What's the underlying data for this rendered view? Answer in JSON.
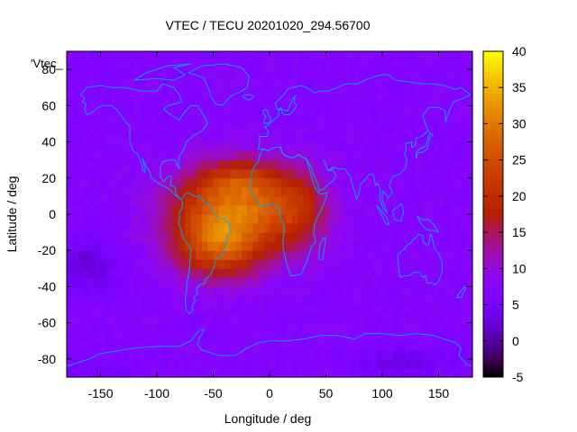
{
  "chart_data": {
    "type": "heatmap",
    "title": "VTEC / TECU 20201020_294.56700",
    "xlabel": "Longitude / deg",
    "ylabel": "Latitude / deg",
    "legend_label": "'Vtec_",
    "xlim": [
      -180,
      180
    ],
    "ylim": [
      -90,
      90
    ],
    "xticks": [
      -150,
      -100,
      -50,
      0,
      50,
      100,
      150
    ],
    "yticks": [
      -80,
      -60,
      -40,
      -20,
      0,
      20,
      40,
      60,
      80
    ],
    "colorbar": {
      "min": -5,
      "max": 40,
      "ticks": [
        -5,
        0,
        5,
        10,
        15,
        20,
        25,
        30,
        35,
        40
      ],
      "colormap": "gnuplot-pm3d-black-blue-red-yellow"
    },
    "background_level": 7,
    "anomalies": [
      {
        "name": "equatorial anomaly core",
        "lon": -30,
        "lat": 5,
        "lon_width": 55,
        "lat_width": 22,
        "amp": 20
      },
      {
        "name": "south american crest",
        "lon": -45,
        "lat": -18,
        "lon_width": 40,
        "lat_width": 18,
        "amp": 16
      },
      {
        "name": "eastern extension",
        "lon": 25,
        "lat": 2,
        "lon_width": 28,
        "lat_width": 22,
        "amp": 8
      },
      {
        "name": "northern crest",
        "lon": -25,
        "lat": 20,
        "lon_width": 30,
        "lat_width": 10,
        "amp": 6
      },
      {
        "name": "pacific depletion",
        "lon": -160,
        "lat": -28,
        "lon_width": 22,
        "lat_width": 14,
        "amp": -5
      },
      {
        "name": "antarctic depletion",
        "lon": 120,
        "lat": -82,
        "lon_width": 40,
        "lat_width": 8,
        "amp": -4
      },
      {
        "name": "polar depletion",
        "lon": -150,
        "lat": -85,
        "lon_width": 40,
        "lat_width": 6,
        "amp": -2
      }
    ],
    "coastline_color": "#00a8ff"
  }
}
